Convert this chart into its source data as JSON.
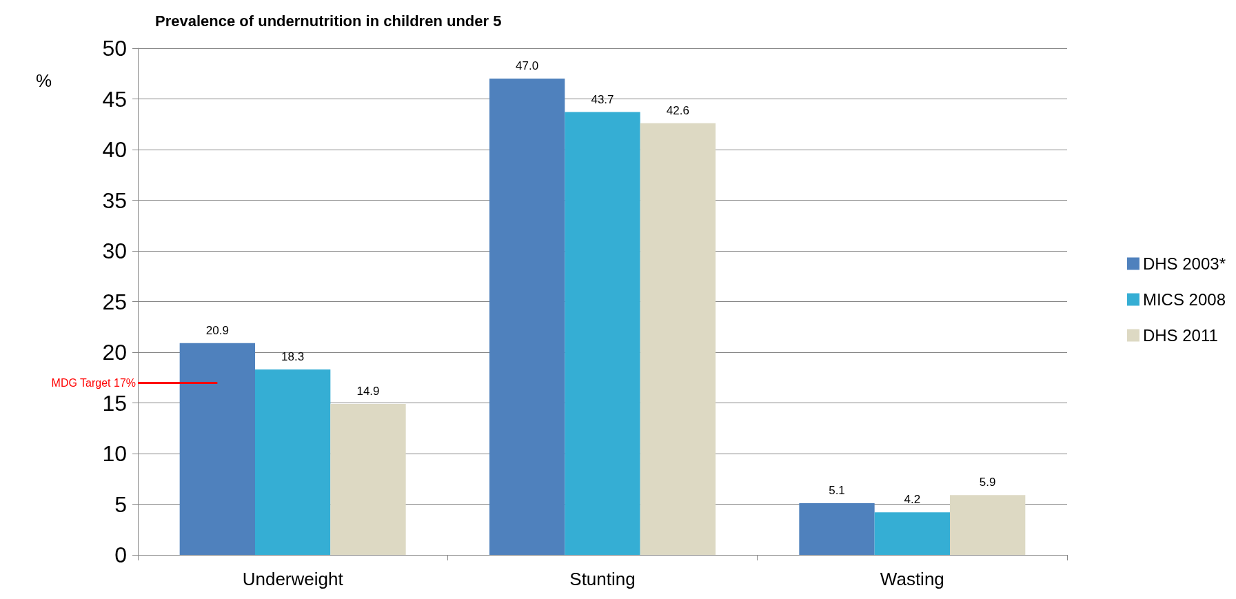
{
  "chart_data": {
    "type": "bar",
    "title": "Prevalence of undernutrition in children under 5",
    "ylabel": "%",
    "categories": [
      "Underweight",
      "Stunting",
      "Wasting"
    ],
    "series": [
      {
        "name": "DHS 2003*",
        "color": "#4f81bd",
        "values": [
          20.9,
          47.0,
          5.1
        ],
        "value_labels": [
          "20.9",
          "47.0",
          "5.1"
        ]
      },
      {
        "name": "MICS 2008",
        "color": "#35aed4",
        "values": [
          18.3,
          43.7,
          4.2
        ],
        "value_labels": [
          "18.3",
          "43.7",
          "4.2"
        ]
      },
      {
        "name": "DHS 2011",
        "color": "#ddd9c3",
        "values": [
          14.9,
          42.6,
          5.9
        ],
        "value_labels": [
          "14.9",
          "42.6",
          "5.9"
        ]
      }
    ],
    "ylim": [
      0,
      50
    ],
    "yticks": [
      0,
      5,
      10,
      15,
      20,
      25,
      30,
      35,
      40,
      45,
      50
    ],
    "grid": "y",
    "legend": "right",
    "ref_lines": [
      {
        "axis": "y",
        "value": 17,
        "label": "MDG Target 17%",
        "color": "#ff0000"
      }
    ]
  }
}
